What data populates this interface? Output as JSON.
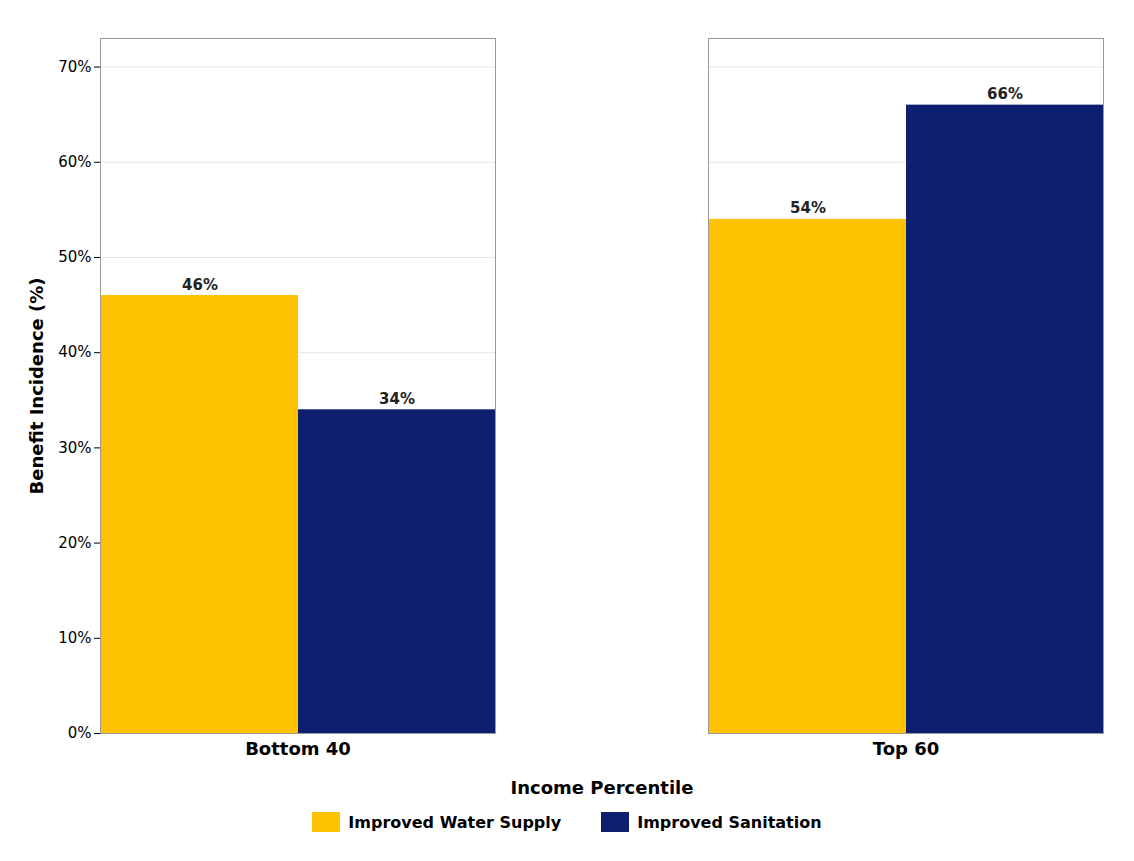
{
  "chart_data": {
    "type": "bar",
    "categories": [
      "Bottom 40",
      "Top 60"
    ],
    "series": [
      {
        "name": "Improved Water Supply",
        "color": "#FFC200",
        "values": [
          46,
          54
        ],
        "value_labels": [
          "46%",
          "54%"
        ]
      },
      {
        "name": "Improved Sanitation",
        "color": "#0D1F6E",
        "values": [
          34,
          66
        ],
        "value_labels": [
          "34%",
          "66%"
        ]
      }
    ],
    "xlabel": "Income Percentile",
    "ylabel": "Benefit Incidence (%)",
    "ylim": [
      0,
      73
    ],
    "yticks": [
      {
        "value": 0,
        "label": "0%"
      },
      {
        "value": 10,
        "label": "10%"
      },
      {
        "value": 20,
        "label": "20%"
      },
      {
        "value": 30,
        "label": "30%"
      },
      {
        "value": 40,
        "label": "40%"
      },
      {
        "value": 50,
        "label": "50%"
      },
      {
        "value": 60,
        "label": "60%"
      },
      {
        "value": 70,
        "label": "70%"
      }
    ],
    "grid": true,
    "data_labels": true,
    "legend": "bottom"
  }
}
